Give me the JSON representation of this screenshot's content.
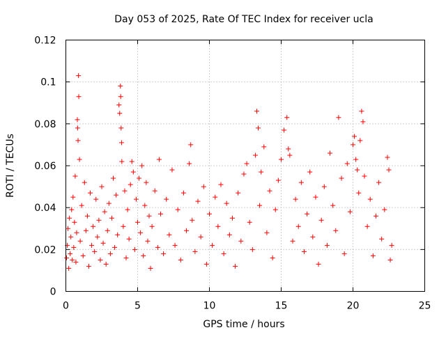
{
  "chart_data": {
    "type": "scatter",
    "title": "Day 053 of 2025, Rate Of TEC Index for receiver ucla",
    "xlabel": "GPS time / hours",
    "ylabel": "ROTI / TECUs",
    "xlim": [
      0,
      25
    ],
    "ylim": [
      0,
      0.12
    ],
    "x_ticks": [
      0,
      5,
      10,
      15,
      20,
      25
    ],
    "x_tick_labels": [
      "0",
      "5",
      "10",
      "15",
      "20",
      "25"
    ],
    "y_ticks": [
      0,
      0.02,
      0.04,
      0.06,
      0.08,
      0.1,
      0.12
    ],
    "y_tick_labels": [
      "0",
      "0.02",
      "0.04",
      "0.06",
      "0.08",
      "0.1",
      "0.12"
    ],
    "grid": true,
    "marker": "plus",
    "series": [
      {
        "color": "#ff0000",
        "points": [
          [
            0.05,
            0.016
          ],
          [
            0.1,
            0.022
          ],
          [
            0.15,
            0.03
          ],
          [
            0.2,
            0.011
          ],
          [
            0.25,
            0.035
          ],
          [
            0.3,
            0.018
          ],
          [
            0.35,
            0.026
          ],
          [
            0.4,
            0.039
          ],
          [
            0.45,
            0.015
          ],
          [
            0.5,
            0.045
          ],
          [
            0.55,
            0.021
          ],
          [
            0.6,
            0.033
          ],
          [
            0.65,
            0.055
          ],
          [
            0.7,
            0.014
          ],
          [
            0.75,
            0.028
          ],
          [
            0.8,
            0.082
          ],
          [
            0.82,
            0.078
          ],
          [
            0.85,
            0.072
          ],
          [
            0.88,
            0.103
          ],
          [
            0.9,
            0.093
          ],
          [
            0.95,
            0.063
          ],
          [
            1.0,
            0.024
          ],
          [
            1.1,
            0.041
          ],
          [
            1.2,
            0.017
          ],
          [
            1.3,
            0.052
          ],
          [
            1.4,
            0.029
          ],
          [
            1.5,
            0.036
          ],
          [
            1.6,
            0.012
          ],
          [
            1.7,
            0.047
          ],
          [
            1.8,
            0.022
          ],
          [
            1.9,
            0.031
          ],
          [
            2.0,
            0.019
          ],
          [
            2.1,
            0.044
          ],
          [
            2.2,
            0.026
          ],
          [
            2.3,
            0.034
          ],
          [
            2.4,
            0.015
          ],
          [
            2.5,
            0.05
          ],
          [
            2.6,
            0.023
          ],
          [
            2.7,
            0.038
          ],
          [
            2.8,
            0.013
          ],
          [
            2.9,
            0.029
          ],
          [
            3.0,
            0.042
          ],
          [
            3.1,
            0.018
          ],
          [
            3.2,
            0.035
          ],
          [
            3.3,
            0.054
          ],
          [
            3.4,
            0.021
          ],
          [
            3.5,
            0.046
          ],
          [
            3.6,
            0.027
          ],
          [
            3.7,
            0.089
          ],
          [
            3.75,
            0.085
          ],
          [
            3.8,
            0.098
          ],
          [
            3.82,
            0.093
          ],
          [
            3.85,
            0.078
          ],
          [
            3.88,
            0.071
          ],
          [
            3.9,
            0.062
          ],
          [
            4.0,
            0.031
          ],
          [
            4.1,
            0.048
          ],
          [
            4.2,
            0.016
          ],
          [
            4.3,
            0.039
          ],
          [
            4.4,
            0.025
          ],
          [
            4.5,
            0.051
          ],
          [
            4.6,
            0.062
          ],
          [
            4.7,
            0.057
          ],
          [
            4.8,
            0.02
          ],
          [
            4.9,
            0.044
          ],
          [
            5.0,
            0.033
          ],
          [
            5.1,
            0.054
          ],
          [
            5.2,
            0.028
          ],
          [
            5.3,
            0.06
          ],
          [
            5.4,
            0.017
          ],
          [
            5.5,
            0.041
          ],
          [
            5.6,
            0.052
          ],
          [
            5.7,
            0.024
          ],
          [
            5.8,
            0.036
          ],
          [
            5.9,
            0.011
          ],
          [
            6.0,
            0.031
          ],
          [
            6.2,
            0.048
          ],
          [
            6.4,
            0.021
          ],
          [
            6.5,
            0.063
          ],
          [
            6.6,
            0.037
          ],
          [
            6.8,
            0.018
          ],
          [
            7.0,
            0.044
          ],
          [
            7.2,
            0.027
          ],
          [
            7.4,
            0.058
          ],
          [
            7.6,
            0.022
          ],
          [
            7.8,
            0.039
          ],
          [
            8.0,
            0.015
          ],
          [
            8.2,
            0.047
          ],
          [
            8.4,
            0.029
          ],
          [
            8.6,
            0.061
          ],
          [
            8.7,
            0.07
          ],
          [
            8.8,
            0.034
          ],
          [
            9.0,
            0.019
          ],
          [
            9.2,
            0.043
          ],
          [
            9.4,
            0.026
          ],
          [
            9.6,
            0.05
          ],
          [
            9.8,
            0.013
          ],
          [
            10.0,
            0.037
          ],
          [
            10.2,
            0.022
          ],
          [
            10.4,
            0.045
          ],
          [
            10.6,
            0.031
          ],
          [
            10.8,
            0.051
          ],
          [
            11.0,
            0.018
          ],
          [
            11.2,
            0.042
          ],
          [
            11.4,
            0.027
          ],
          [
            11.6,
            0.035
          ],
          [
            11.8,
            0.012
          ],
          [
            12.0,
            0.047
          ],
          [
            12.2,
            0.024
          ],
          [
            12.4,
            0.056
          ],
          [
            12.6,
            0.061
          ],
          [
            12.8,
            0.033
          ],
          [
            13.0,
            0.02
          ],
          [
            13.2,
            0.065
          ],
          [
            13.3,
            0.086
          ],
          [
            13.4,
            0.078
          ],
          [
            13.5,
            0.041
          ],
          [
            13.6,
            0.057
          ],
          [
            13.8,
            0.069
          ],
          [
            14.0,
            0.028
          ],
          [
            14.2,
            0.048
          ],
          [
            14.4,
            0.016
          ],
          [
            14.6,
            0.039
          ],
          [
            14.8,
            0.053
          ],
          [
            15.0,
            0.063
          ],
          [
            15.2,
            0.077
          ],
          [
            15.4,
            0.083
          ],
          [
            15.5,
            0.068
          ],
          [
            15.6,
            0.065
          ],
          [
            15.8,
            0.024
          ],
          [
            16.0,
            0.044
          ],
          [
            16.2,
            0.031
          ],
          [
            16.4,
            0.052
          ],
          [
            16.6,
            0.019
          ],
          [
            16.8,
            0.037
          ],
          [
            17.0,
            0.057
          ],
          [
            17.2,
            0.026
          ],
          [
            17.4,
            0.045
          ],
          [
            17.6,
            0.013
          ],
          [
            17.8,
            0.034
          ],
          [
            18.0,
            0.05
          ],
          [
            18.2,
            0.022
          ],
          [
            18.4,
            0.066
          ],
          [
            18.6,
            0.041
          ],
          [
            18.8,
            0.029
          ],
          [
            19.0,
            0.083
          ],
          [
            19.2,
            0.054
          ],
          [
            19.4,
            0.018
          ],
          [
            19.6,
            0.061
          ],
          [
            19.8,
            0.038
          ],
          [
            20.0,
            0.07
          ],
          [
            20.1,
            0.074
          ],
          [
            20.2,
            0.063
          ],
          [
            20.3,
            0.058
          ],
          [
            20.4,
            0.047
          ],
          [
            20.5,
            0.072
          ],
          [
            20.6,
            0.086
          ],
          [
            20.7,
            0.081
          ],
          [
            20.8,
            0.055
          ],
          [
            21.0,
            0.031
          ],
          [
            21.2,
            0.044
          ],
          [
            21.4,
            0.017
          ],
          [
            21.6,
            0.036
          ],
          [
            21.8,
            0.052
          ],
          [
            22.0,
            0.025
          ],
          [
            22.2,
            0.039
          ],
          [
            22.4,
            0.064
          ],
          [
            22.5,
            0.058
          ],
          [
            22.6,
            0.015
          ],
          [
            22.7,
            0.022
          ]
        ]
      }
    ]
  }
}
